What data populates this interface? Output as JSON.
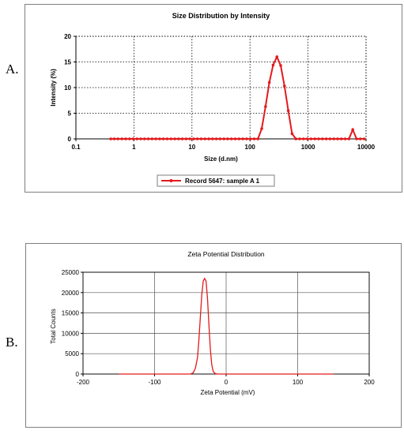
{
  "panel_labels": {
    "a": "A.",
    "b": "B."
  },
  "chart_data": [
    {
      "type": "line",
      "title": "Size Distribution by Intensity",
      "xlabel": "Size (d.nm)",
      "ylabel": "Intensity (%)",
      "x_scale": "log",
      "xlim": [
        0.1,
        10000
      ],
      "ylim": [
        0,
        20
      ],
      "x_ticks": [
        0.1,
        1,
        10,
        100,
        1000,
        10000
      ],
      "x_tick_labels": [
        "0.1",
        "1",
        "10",
        "100",
        "1000",
        "10000"
      ],
      "y_ticks": [
        0,
        5,
        10,
        15,
        20
      ],
      "y_tick_labels": [
        "0",
        "5",
        "10",
        "15",
        "20"
      ],
      "grid": true,
      "legend_position": "bottom-center",
      "color": "#e31a1c",
      "series": [
        {
          "name": "Record 5647: sample A 1",
          "x": [
            0.4,
            0.46,
            0.53,
            0.62,
            0.72,
            0.84,
            0.97,
            1.13,
            1.31,
            1.52,
            1.77,
            2.05,
            2.38,
            2.77,
            3.22,
            3.74,
            4.35,
            5.05,
            5.87,
            6.82,
            7.92,
            9.2,
            10.7,
            12.4,
            14.4,
            16.7,
            19.5,
            22.6,
            26.3,
            30.5,
            35.5,
            41.2,
            47.9,
            55.7,
            64.7,
            75.2,
            87.4,
            101.6,
            118.1,
            137.2,
            159.4,
            185.3,
            215.4,
            250.3,
            291.0,
            338.2,
            393.2,
            457.0,
            531.2,
            617.5,
            717.8,
            834.3,
            969.8,
            1127,
            1310,
            1523,
            1770,
            2058,
            2392,
            2780,
            3231,
            3756,
            4366,
            5075,
            5899,
            6857,
            7971,
            9265
          ],
          "y": [
            0,
            0,
            0,
            0,
            0,
            0,
            0,
            0,
            0,
            0,
            0,
            0,
            0,
            0,
            0,
            0,
            0,
            0,
            0,
            0,
            0,
            0,
            0,
            0,
            0,
            0,
            0,
            0,
            0,
            0,
            0,
            0,
            0,
            0,
            0,
            0,
            0,
            0,
            0,
            0,
            2.0,
            6.3,
            11.0,
            14.4,
            16.0,
            14.3,
            10.3,
            5.5,
            1.0,
            0,
            0,
            0,
            0,
            0,
            0,
            0,
            0,
            0,
            0,
            0,
            0,
            0,
            0,
            0,
            1.8,
            0,
            0,
            0
          ]
        }
      ]
    },
    {
      "type": "line",
      "title": "Zeta Potential Distribution",
      "xlabel": "Zeta Potential (mV)",
      "ylabel": "Total Counts",
      "xlim": [
        -200,
        200
      ],
      "ylim": [
        0,
        25000
      ],
      "x_ticks": [
        -200,
        -100,
        0,
        100,
        200
      ],
      "x_tick_labels": [
        "-200",
        "-100",
        "0",
        "100",
        "200"
      ],
      "y_ticks": [
        0,
        5000,
        10000,
        15000,
        20000,
        25000
      ],
      "y_tick_labels": [
        "0",
        "5000",
        "10000",
        "15000",
        "20000",
        "25000"
      ],
      "grid": true,
      "color": "#e31a1c",
      "series": [
        {
          "x": [
            -150,
            -50,
            -46,
            -43,
            -40,
            -38,
            -36,
            -34,
            -32,
            -30,
            -28,
            -26,
            -24,
            -22,
            -20,
            -18,
            -15,
            -12,
            150
          ],
          "y": [
            0,
            0,
            300,
            1400,
            4000,
            8500,
            14000,
            19500,
            22800,
            23500,
            22800,
            18500,
            12000,
            6000,
            2200,
            600,
            100,
            0,
            0
          ]
        }
      ]
    }
  ]
}
